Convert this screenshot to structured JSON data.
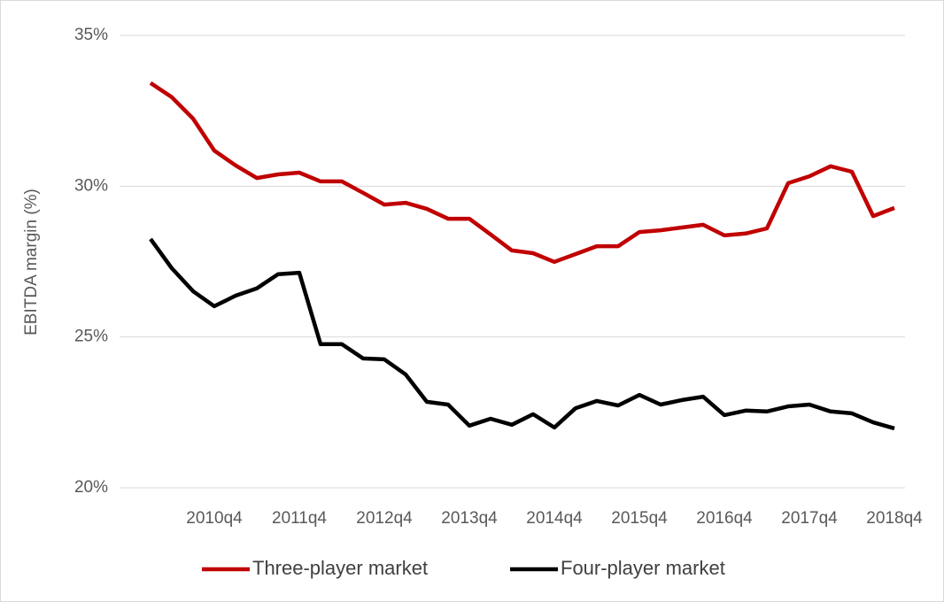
{
  "chart_data": {
    "type": "line",
    "y_label": "EBITDA margin (%)",
    "categories": [
      null,
      null,
      null,
      "2010q4",
      null,
      null,
      null,
      "2011q4",
      null,
      null,
      null,
      "2012q4",
      null,
      null,
      null,
      "2013q4",
      null,
      null,
      null,
      "2014q4",
      null,
      null,
      null,
      "2015q4",
      null,
      null,
      null,
      "2016q4",
      null,
      null,
      null,
      "2017q4",
      null,
      null,
      null,
      "2018q4"
    ],
    "series": [
      {
        "name": "Three-player market",
        "color": "#c00000",
        "values": [
          33.42,
          32.95,
          32.24,
          31.18,
          30.69,
          30.27,
          30.39,
          30.45,
          30.16,
          30.16,
          29.78,
          29.39,
          29.45,
          29.25,
          28.92,
          28.92,
          28.4,
          27.87,
          27.78,
          27.49,
          27.75,
          28.01,
          28.01,
          28.48,
          28.54,
          28.63,
          28.72,
          28.37,
          28.43,
          28.6,
          30.1,
          30.33,
          30.66,
          30.48,
          29.01,
          29.28
        ]
      },
      {
        "name": "Four-player market",
        "color": "#000000",
        "values": [
          28.25,
          27.28,
          26.52,
          26.02,
          26.37,
          26.61,
          27.08,
          27.13,
          24.76,
          24.76,
          24.29,
          24.26,
          23.76,
          22.85,
          22.76,
          22.06,
          22.29,
          22.09,
          22.44,
          22.0,
          22.64,
          22.88,
          22.73,
          23.08,
          22.76,
          22.91,
          23.02,
          22.41,
          22.56,
          22.53,
          22.7,
          22.76,
          22.53,
          22.47,
          22.17,
          21.97
        ]
      }
    ],
    "ylim": [
      20,
      35
    ],
    "yticks": [
      {
        "value": 20,
        "label": "20%"
      },
      {
        "value": 25,
        "label": "25%"
      },
      {
        "value": 30,
        "label": "30%"
      },
      {
        "value": 35,
        "label": "35%"
      }
    ],
    "grid": true,
    "legend": "bottom"
  }
}
